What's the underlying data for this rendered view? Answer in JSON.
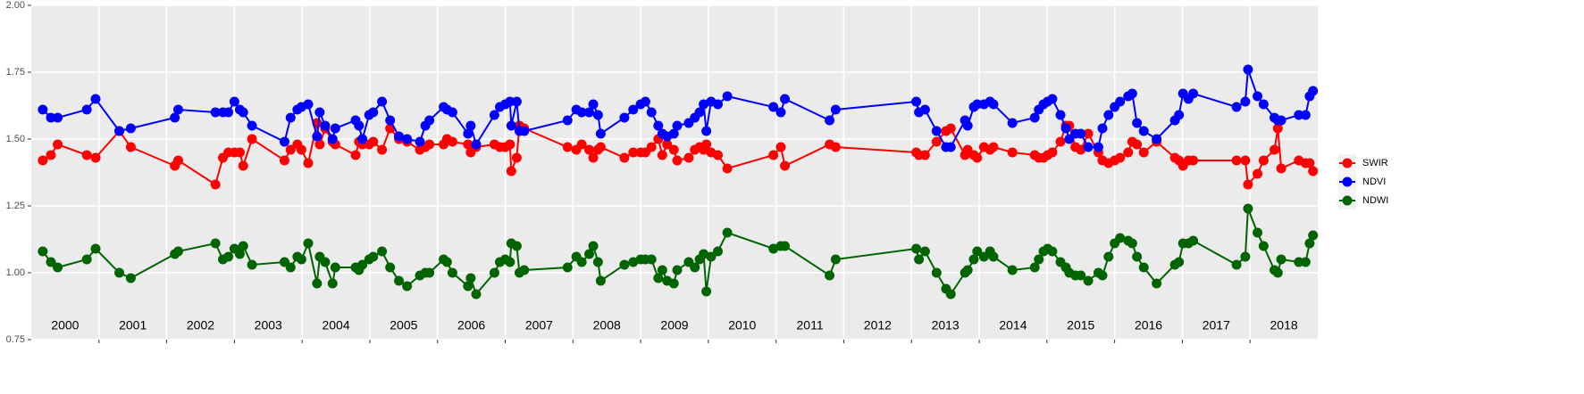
{
  "chart_data": {
    "type": "line",
    "x": [
      2000.17,
      2000.29,
      2000.39,
      2000.82,
      2000.95,
      2001.3,
      2001.47,
      2002.12,
      2002.17,
      2002.72,
      2002.83,
      2002.91,
      2003.0,
      2003.08,
      2003.13,
      2003.26,
      2003.74,
      2003.83,
      2003.93,
      2003.99,
      2004.09,
      2004.22,
      2004.26,
      2004.34,
      2004.45,
      2004.49,
      2004.79,
      2004.84,
      2004.89,
      2004.99,
      2005.05,
      2005.18,
      2005.3,
      2005.43,
      2005.55,
      2005.74,
      2005.82,
      2005.88,
      2006.09,
      2006.14,
      2006.22,
      2006.45,
      2006.49,
      2006.57,
      2006.84,
      2006.92,
      2007.0,
      2007.07,
      2007.09,
      2007.17,
      2007.21,
      2007.28,
      2007.92,
      2008.05,
      2008.13,
      2008.24,
      2008.3,
      2008.37,
      2008.41,
      2008.76,
      2008.89,
      2009.0,
      2009.07,
      2009.16,
      2009.26,
      2009.32,
      2009.39,
      2009.49,
      2009.54,
      2009.71,
      2009.8,
      2009.87,
      2009.93,
      2009.97,
      2010.04,
      2010.14,
      2010.28,
      2010.96,
      2011.07,
      2011.13,
      2011.79,
      2011.88,
      2013.07,
      2013.11,
      2013.2,
      2013.37,
      2013.51,
      2013.58,
      2013.79,
      2013.83,
      2013.92,
      2013.97,
      2014.07,
      2014.16,
      2014.21,
      2014.49,
      2014.82,
      2014.88,
      2014.95,
      2015.01,
      2015.08,
      2015.2,
      2015.28,
      2015.33,
      2015.42,
      2015.5,
      2015.61,
      2015.76,
      2015.82,
      2015.91,
      2016.0,
      2016.08,
      2016.2,
      2016.26,
      2016.33,
      2016.43,
      2016.62,
      2016.89,
      2016.95,
      2017.01,
      2017.09,
      2017.16,
      2017.8,
      2017.93,
      2017.97,
      2018.11,
      2018.2,
      2018.36,
      2018.41,
      2018.46,
      2018.72,
      2018.82,
      2018.88,
      2018.93
    ],
    "series": [
      {
        "name": "SWIR",
        "color": "#ff0000",
        "values": [
          1.42,
          1.44,
          1.48,
          1.44,
          1.43,
          1.53,
          1.47,
          1.4,
          1.42,
          1.33,
          1.43,
          1.45,
          1.45,
          1.45,
          1.4,
          1.5,
          1.42,
          1.46,
          1.48,
          1.46,
          1.41,
          1.56,
          1.48,
          1.54,
          1.49,
          1.48,
          1.44,
          1.49,
          1.48,
          1.48,
          1.49,
          1.46,
          1.54,
          1.5,
          1.49,
          1.46,
          1.47,
          1.48,
          1.48,
          1.5,
          1.49,
          1.48,
          1.45,
          1.47,
          1.48,
          1.47,
          1.47,
          1.48,
          1.38,
          1.43,
          1.55,
          1.54,
          1.47,
          1.46,
          1.48,
          1.46,
          1.43,
          1.46,
          1.47,
          1.43,
          1.45,
          1.45,
          1.45,
          1.47,
          1.5,
          1.44,
          1.48,
          1.46,
          1.42,
          1.43,
          1.46,
          1.47,
          1.46,
          1.48,
          1.45,
          1.44,
          1.39,
          1.44,
          1.47,
          1.4,
          1.48,
          1.47,
          1.45,
          1.44,
          1.44,
          1.49,
          1.53,
          1.54,
          1.44,
          1.46,
          1.44,
          1.43,
          1.47,
          1.46,
          1.47,
          1.45,
          1.44,
          1.43,
          1.43,
          1.44,
          1.45,
          1.49,
          1.55,
          1.55,
          1.47,
          1.46,
          1.52,
          1.45,
          1.42,
          1.41,
          1.42,
          1.43,
          1.45,
          1.49,
          1.48,
          1.45,
          1.49,
          1.43,
          1.42,
          1.4,
          1.42,
          1.42,
          1.42,
          1.42,
          1.33,
          1.37,
          1.42,
          1.46,
          1.54,
          1.39,
          1.42,
          1.41,
          1.41,
          1.38
        ]
      },
      {
        "name": "NDVI",
        "color": "#0000ff",
        "values": [
          1.61,
          1.58,
          1.58,
          1.61,
          1.65,
          1.53,
          1.54,
          1.58,
          1.61,
          1.6,
          1.6,
          1.6,
          1.64,
          1.61,
          1.6,
          1.55,
          1.49,
          1.58,
          1.61,
          1.62,
          1.63,
          1.51,
          1.6,
          1.55,
          1.5,
          1.54,
          1.57,
          1.55,
          1.5,
          1.59,
          1.6,
          1.64,
          1.57,
          1.51,
          1.5,
          1.49,
          1.55,
          1.57,
          1.62,
          1.61,
          1.6,
          1.52,
          1.55,
          1.48,
          1.59,
          1.62,
          1.63,
          1.64,
          1.55,
          1.64,
          1.53,
          1.53,
          1.57,
          1.61,
          1.6,
          1.6,
          1.63,
          1.59,
          1.52,
          1.58,
          1.61,
          1.63,
          1.64,
          1.6,
          1.55,
          1.52,
          1.51,
          1.52,
          1.55,
          1.56,
          1.58,
          1.6,
          1.63,
          1.53,
          1.64,
          1.63,
          1.66,
          1.62,
          1.6,
          1.65,
          1.57,
          1.61,
          1.64,
          1.6,
          1.61,
          1.53,
          1.47,
          1.47,
          1.57,
          1.55,
          1.62,
          1.63,
          1.63,
          1.64,
          1.63,
          1.56,
          1.58,
          1.61,
          1.63,
          1.64,
          1.65,
          1.59,
          1.54,
          1.5,
          1.52,
          1.52,
          1.47,
          1.47,
          1.54,
          1.59,
          1.62,
          1.64,
          1.66,
          1.67,
          1.56,
          1.53,
          1.5,
          1.57,
          1.59,
          1.67,
          1.65,
          1.67,
          1.62,
          1.64,
          1.76,
          1.66,
          1.63,
          1.58,
          1.57,
          1.57,
          1.59,
          1.59,
          1.66,
          1.68
        ]
      },
      {
        "name": "NDWI",
        "color": "#006400",
        "values": [
          1.08,
          1.04,
          1.02,
          1.05,
          1.09,
          1.0,
          0.98,
          1.07,
          1.08,
          1.11,
          1.05,
          1.06,
          1.09,
          1.07,
          1.1,
          1.03,
          1.04,
          1.02,
          1.06,
          1.05,
          1.11,
          0.96,
          1.06,
          1.04,
          0.96,
          1.02,
          1.02,
          1.01,
          1.03,
          1.05,
          1.06,
          1.08,
          1.02,
          0.97,
          0.95,
          0.99,
          1.0,
          1.0,
          1.05,
          1.04,
          1.0,
          0.95,
          0.98,
          0.92,
          1.0,
          1.04,
          1.05,
          1.04,
          1.11,
          1.1,
          1.0,
          1.01,
          1.02,
          1.06,
          1.04,
          1.07,
          1.1,
          1.04,
          0.97,
          1.03,
          1.04,
          1.05,
          1.05,
          1.05,
          0.98,
          1.01,
          0.97,
          0.96,
          1.01,
          1.04,
          1.02,
          1.05,
          1.07,
          0.93,
          1.06,
          1.08,
          1.15,
          1.09,
          1.1,
          1.1,
          0.99,
          1.05,
          1.09,
          1.05,
          1.08,
          1.0,
          0.94,
          0.92,
          1.0,
          1.01,
          1.05,
          1.08,
          1.06,
          1.08,
          1.06,
          1.01,
          1.02,
          1.05,
          1.08,
          1.09,
          1.08,
          1.04,
          1.02,
          1.0,
          0.99,
          0.99,
          0.97,
          1.0,
          0.99,
          1.06,
          1.11,
          1.13,
          1.12,
          1.11,
          1.06,
          1.02,
          0.96,
          1.03,
          1.04,
          1.11,
          1.11,
          1.12,
          1.03,
          1.06,
          1.24,
          1.15,
          1.1,
          1.01,
          1.0,
          1.05,
          1.04,
          1.04,
          1.11,
          1.14
        ]
      }
    ],
    "xlim": [
      2000,
      2019
    ],
    "xticks": [
      2001,
      2002,
      2003,
      2004,
      2005,
      2006,
      2007,
      2008,
      2009,
      2010,
      2011,
      2012,
      2013,
      2014,
      2015,
      2016,
      2017,
      2018
    ],
    "year_labels": [
      2000,
      2001,
      2002,
      2003,
      2004,
      2005,
      2006,
      2007,
      2008,
      2009,
      2010,
      2011,
      2012,
      2013,
      2014,
      2015,
      2016,
      2017,
      2018
    ],
    "ylim": [
      0.75,
      2.0
    ],
    "yticks": [
      0.75,
      {
        "value": 1.0,
        "label": "1.00"
      },
      1.25,
      {
        "value": 1.5,
        "label": "1.50"
      },
      1.75,
      {
        "value": 2.0,
        "label": "2.00"
      }
    ],
    "grid": true,
    "legend": "right"
  }
}
